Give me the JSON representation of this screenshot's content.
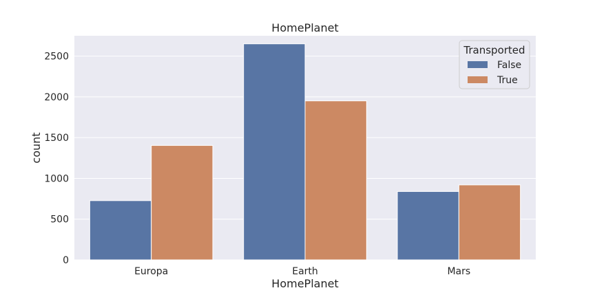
{
  "chart_data": {
    "type": "bar",
    "title": "HomePlanet",
    "xlabel": "HomePlanet",
    "ylabel": "count",
    "categories": [
      "Europa",
      "Earth",
      "Mars"
    ],
    "series": [
      {
        "name": "False",
        "values": [
          727,
          2651,
          839
        ],
        "color": "#5875a4"
      },
      {
        "name": "True",
        "values": [
          1404,
          1951,
          920
        ],
        "color": "#cc8963"
      }
    ],
    "ylim": [
      0,
      2750
    ],
    "yticks": [
      0,
      500,
      1000,
      1500,
      2000,
      2500
    ],
    "grid": true,
    "legend": {
      "title": "Transported",
      "placement": "top-right"
    },
    "background": "#eaeaf2",
    "grid_color": "#ffffff"
  }
}
